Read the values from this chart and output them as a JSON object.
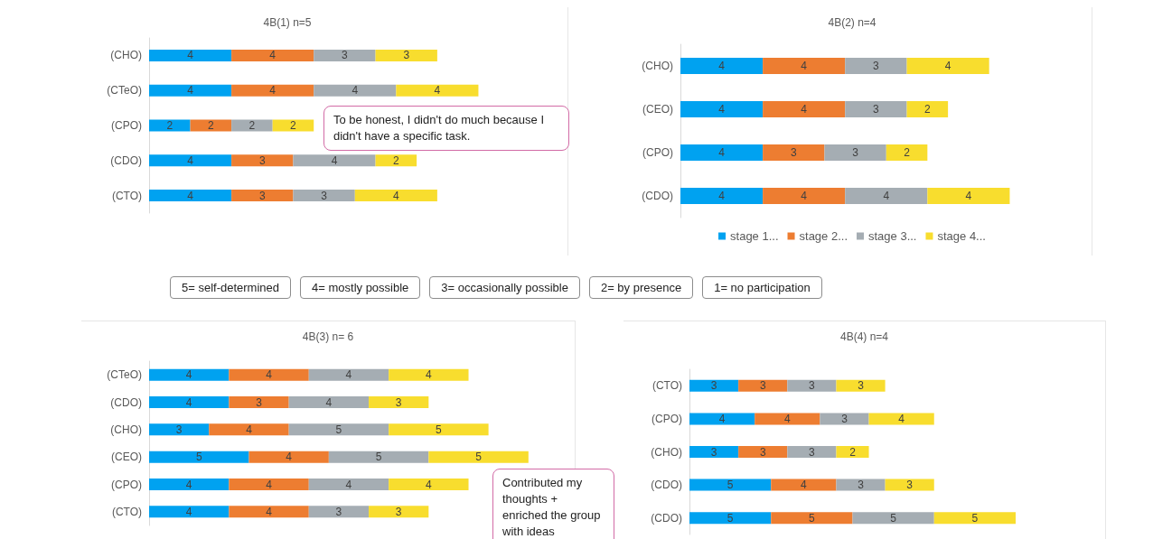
{
  "chart_data": [
    {
      "type": "bar",
      "title": "4B(1) n=5",
      "orientation": "horizontal",
      "stacked": true,
      "data_labels": true,
      "grid": false,
      "legend": false,
      "tick_labels": "y",
      "categories": [
        "(CHO)",
        "(CTeO)",
        "(CPO)",
        "(CDO)",
        "(CTO)"
      ],
      "series": [
        {
          "color": "#00a2f0",
          "values": [
            4,
            4,
            2,
            4,
            4
          ]
        },
        {
          "color": "#ed7d31",
          "values": [
            4,
            4,
            2,
            3,
            3
          ]
        },
        {
          "color": "#a5adb3",
          "values": [
            3,
            4,
            2,
            4,
            3
          ]
        },
        {
          "color": "#f8dd2e",
          "values": [
            3,
            4,
            2,
            2,
            4
          ]
        }
      ],
      "annotations": [
        "To be honest, I didn't do much because I didn't have a specific task."
      ]
    },
    {
      "type": "bar",
      "title": "4B(2) n=4",
      "orientation": "horizontal",
      "stacked": true,
      "data_labels": true,
      "grid": false,
      "legend": "bottom",
      "tick_labels": "y",
      "categories": [
        "(CHO)",
        "(CEO)",
        "(CPO)",
        "(CDO)"
      ],
      "series": [
        {
          "name": "stage 1...",
          "color": "#00a2f0",
          "values": [
            4,
            4,
            4,
            4
          ]
        },
        {
          "name": "stage 2...",
          "color": "#ed7d31",
          "values": [
            4,
            4,
            3,
            4
          ]
        },
        {
          "name": "stage 3...",
          "color": "#a5adb3",
          "values": [
            3,
            3,
            3,
            4
          ]
        },
        {
          "name": "stage 4...",
          "color": "#f8dd2e",
          "values": [
            4,
            2,
            2,
            4
          ]
        }
      ]
    },
    {
      "type": "other",
      "annotations": [
        "5= self-determined",
        "4= mostly possible",
        "3= occasionally possible",
        "2= by presence",
        "1= no participation"
      ]
    },
    {
      "type": "bar",
      "title": "4B(3) n= 6",
      "orientation": "horizontal",
      "stacked": true,
      "data_labels": true,
      "grid": false,
      "legend": false,
      "tick_labels": "y",
      "categories": [
        "(CTeO)",
        "(CDO)",
        "(CHO)",
        "(CEO)",
        "(CPO)",
        "(CTO)"
      ],
      "series": [
        {
          "color": "#00a2f0",
          "values": [
            4,
            4,
            3,
            5,
            4,
            4
          ]
        },
        {
          "color": "#ed7d31",
          "values": [
            4,
            3,
            4,
            4,
            4,
            4
          ]
        },
        {
          "color": "#a5adb3",
          "values": [
            4,
            4,
            5,
            5,
            4,
            3
          ]
        },
        {
          "color": "#f8dd2e",
          "values": [
            4,
            3,
            5,
            5,
            4,
            3
          ]
        }
      ],
      "annotations": [
        "Contributed my thoughts + enriched the group with ideas"
      ]
    },
    {
      "type": "bar",
      "title": "4B(4) n=4",
      "orientation": "horizontal",
      "stacked": true,
      "data_labels": true,
      "grid": false,
      "legend": false,
      "tick_labels": "y",
      "categories": [
        "(CTO)",
        "(CPO)",
        "(CHO)",
        "(CDO)",
        "(CDO)"
      ],
      "series": [
        {
          "color": "#00a2f0",
          "values": [
            3,
            4,
            3,
            5,
            5
          ]
        },
        {
          "color": "#ed7d31",
          "values": [
            3,
            4,
            3,
            4,
            5
          ]
        },
        {
          "color": "#a5adb3",
          "values": [
            3,
            3,
            3,
            3,
            5
          ]
        },
        {
          "color": "#f8dd2e",
          "values": [
            3,
            4,
            2,
            3,
            5
          ]
        }
      ]
    }
  ]
}
